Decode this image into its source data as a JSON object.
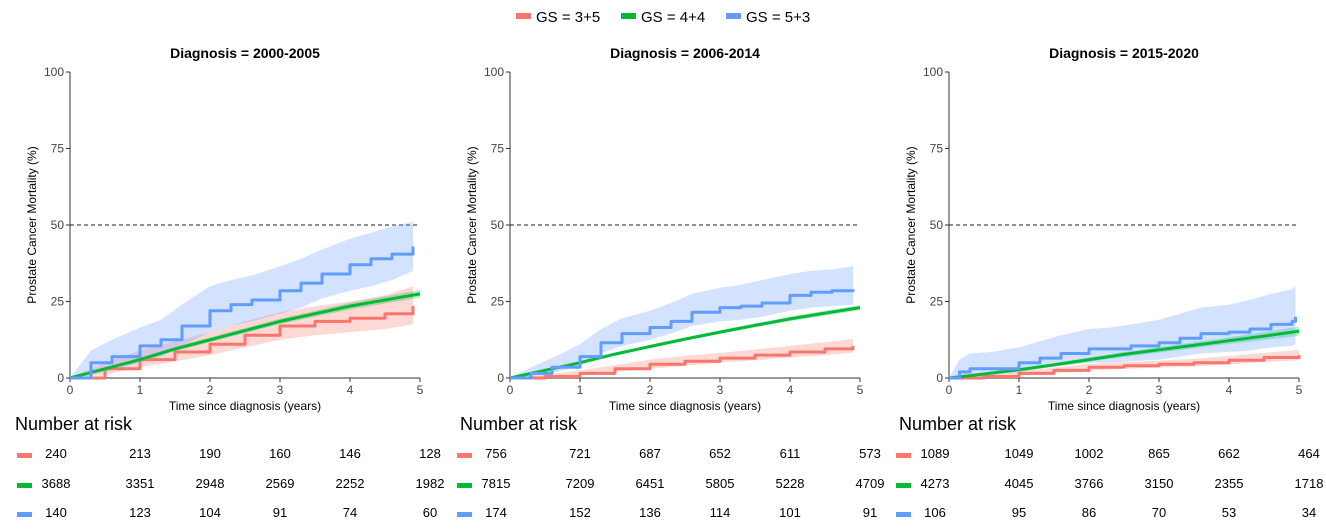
{
  "legend": {
    "items": [
      {
        "label": "GS = 3+5",
        "color": "#f8766d"
      },
      {
        "label": "GS = 4+4",
        "color": "#00ba38"
      },
      {
        "label": "GS = 5+3",
        "color": "#619cff"
      }
    ]
  },
  "risk_table_title": "Number at risk",
  "chart_data": [
    {
      "type": "line",
      "title": "Diagnosis = 2000-2005",
      "xlabel": "Time since diagnosis (years)",
      "ylabel": "Prostate Cancer Mortality (%)",
      "xlim": [
        0,
        5
      ],
      "ylim": [
        0,
        100
      ],
      "x_ticks": [
        "0",
        "1",
        "2",
        "3",
        "4",
        "5"
      ],
      "y_ticks": [
        "0",
        "25",
        "50",
        "75",
        "100"
      ],
      "reference_line_y": 50,
      "grid": false,
      "legend_position": "top",
      "series": [
        {
          "name": "GS = 3+5",
          "color": "#f8766d",
          "x": [
            0,
            0.5,
            1,
            1.5,
            2,
            2.5,
            3,
            3.5,
            4,
            4.5,
            4.9
          ],
          "y": [
            0,
            3,
            6,
            8.5,
            11,
            14,
            17,
            18.5,
            19.5,
            21,
            23.5
          ],
          "lower": [
            0,
            1,
            3.5,
            5.5,
            7.5,
            10,
            12.5,
            14,
            15,
            16,
            17.5
          ],
          "upper": [
            0,
            5,
            9,
            12,
            15,
            18.5,
            21.5,
            23.5,
            25,
            27,
            30
          ]
        },
        {
          "name": "GS = 4+4",
          "color": "#00ba38",
          "x": [
            0,
            0.5,
            1,
            1.5,
            2,
            2.5,
            3,
            3.5,
            4,
            4.5,
            5
          ],
          "y": [
            0,
            3,
            6,
            9.5,
            12.5,
            15.5,
            18.5,
            21,
            23.5,
            25.5,
            27.5
          ],
          "lower": [
            0,
            2.5,
            5.5,
            8.8,
            11.7,
            14.7,
            17.6,
            20,
            22.4,
            24.3,
            26.2
          ],
          "upper": [
            0,
            3.5,
            6.5,
            10.2,
            13.3,
            16.3,
            19.4,
            22,
            24.6,
            26.7,
            28.8
          ]
        },
        {
          "name": "GS = 5+3",
          "color": "#619cff",
          "x": [
            0,
            0.3,
            0.6,
            1,
            1.3,
            1.6,
            2,
            2.3,
            2.6,
            3,
            3.3,
            3.6,
            4,
            4.3,
            4.6,
            4.9
          ],
          "y": [
            0,
            5,
            7,
            10.5,
            12.5,
            17,
            22,
            24,
            25.5,
            28.5,
            31,
            34,
            37,
            39,
            40.5,
            43
          ],
          "lower": [
            0,
            1,
            2.5,
            5,
            7,
            10.5,
            15,
            17,
            18.5,
            21,
            23,
            26,
            28.5,
            30,
            32,
            35
          ],
          "upper": [
            0,
            9,
            12.5,
            16.5,
            19,
            24,
            30,
            32,
            33.5,
            36.5,
            39,
            42,
            45.5,
            47.5,
            49.5,
            51
          ]
        }
      ],
      "risk_table": [
        {
          "name": "GS = 3+5",
          "values": [
            "240",
            "213",
            "190",
            "160",
            "146",
            "128"
          ]
        },
        {
          "name": "GS = 4+4",
          "values": [
            "3688",
            "3351",
            "2948",
            "2569",
            "2252",
            "1982"
          ]
        },
        {
          "name": "GS = 5+3",
          "values": [
            "140",
            "123",
            "104",
            "91",
            "74",
            "60"
          ]
        }
      ]
    },
    {
      "type": "line",
      "title": "Diagnosis = 2006-2014",
      "xlabel": "Time since diagnosis (years)",
      "ylabel": "Prostate Cancer Mortality (%)",
      "xlim": [
        0,
        5
      ],
      "ylim": [
        0,
        100
      ],
      "x_ticks": [
        "0",
        "1",
        "2",
        "3",
        "4",
        "5"
      ],
      "y_ticks": [
        "0",
        "25",
        "50",
        "75",
        "100"
      ],
      "reference_line_y": 50,
      "grid": false,
      "legend_position": "top",
      "series": [
        {
          "name": "GS = 3+5",
          "color": "#f8766d",
          "x": [
            0,
            0.5,
            1,
            1.5,
            2,
            2.5,
            3,
            3.5,
            4,
            4.5,
            4.9
          ],
          "y": [
            0,
            0.5,
            1.5,
            3,
            4.5,
            5.5,
            6.5,
            7.5,
            8.5,
            9.5,
            10.5
          ],
          "lower": [
            0,
            0.2,
            0.8,
            2,
            3,
            4,
            5,
            5.8,
            6.7,
            7.5,
            8.3
          ],
          "upper": [
            0,
            1,
            2.5,
            4.2,
            6,
            7.2,
            8.2,
            9.3,
            10.5,
            11.7,
            12.7
          ]
        },
        {
          "name": "GS = 4+4",
          "color": "#00ba38",
          "x": [
            0,
            0.5,
            1,
            1.5,
            2,
            2.5,
            3,
            3.5,
            4,
            4.5,
            5
          ],
          "y": [
            0,
            2.5,
            5,
            7.8,
            10.3,
            12.7,
            15,
            17.2,
            19.3,
            21.2,
            23
          ],
          "lower": [
            0,
            2.2,
            4.6,
            7.3,
            9.8,
            12.2,
            14.4,
            16.6,
            18.6,
            20.4,
            22.2
          ],
          "upper": [
            0,
            2.8,
            5.4,
            8.3,
            10.8,
            13.2,
            15.6,
            17.8,
            20,
            22,
            23.8
          ]
        },
        {
          "name": "GS = 5+3",
          "color": "#619cff",
          "x": [
            0,
            0.3,
            0.6,
            1,
            1.3,
            1.6,
            2,
            2.3,
            2.6,
            3,
            3.3,
            3.6,
            4,
            4.3,
            4.6,
            4.9
          ],
          "y": [
            0,
            1.5,
            3.5,
            7,
            11.5,
            14.5,
            16.5,
            18.5,
            21.5,
            23,
            23.5,
            24.5,
            27,
            28,
            28.5,
            29
          ],
          "lower": [
            0,
            0.5,
            1.5,
            4,
            8,
            10.5,
            12.5,
            14.5,
            17,
            18.5,
            19,
            20,
            22,
            23,
            23.5,
            24
          ],
          "upper": [
            0,
            3.5,
            6.5,
            11,
            16,
            19.5,
            22,
            24.5,
            27.5,
            29.5,
            30.5,
            32,
            34,
            35,
            35.5,
            36.5
          ]
        }
      ],
      "risk_table": [
        {
          "name": "GS = 3+5",
          "values": [
            "756",
            "721",
            "687",
            "652",
            "611",
            "573"
          ]
        },
        {
          "name": "GS = 4+4",
          "values": [
            "7815",
            "7209",
            "6451",
            "5805",
            "5228",
            "4709"
          ]
        },
        {
          "name": "GS = 5+3",
          "values": [
            "174",
            "152",
            "136",
            "114",
            "101",
            "91"
          ]
        }
      ]
    },
    {
      "type": "line",
      "title": "Diagnosis = 2015-2020",
      "xlabel": "Time since diagnosis (years)",
      "ylabel": "Prostate Cancer Mortality (%)",
      "xlim": [
        0,
        5
      ],
      "ylim": [
        0,
        100
      ],
      "x_ticks": [
        "0",
        "1",
        "2",
        "3",
        "4",
        "5"
      ],
      "y_ticks": [
        "0",
        "25",
        "50",
        "75",
        "100"
      ],
      "reference_line_y": 50,
      "grid": false,
      "legend_position": "top",
      "series": [
        {
          "name": "GS = 3+5",
          "color": "#f8766d",
          "x": [
            0,
            0.5,
            1,
            1.5,
            2,
            2.5,
            3,
            3.5,
            4,
            4.5,
            5
          ],
          "y": [
            0,
            0.5,
            1.5,
            2.5,
            3.5,
            4,
            4.5,
            5,
            5.8,
            6.7,
            7.5
          ],
          "lower": [
            0,
            0.2,
            0.8,
            1.6,
            2.4,
            3,
            3.4,
            3.8,
            4.4,
            5.2,
            5.8
          ],
          "upper": [
            0,
            1,
            2.2,
            3.4,
            4.6,
            5.2,
            5.7,
            6.3,
            7.2,
            8.2,
            9.2
          ]
        },
        {
          "name": "GS = 4+4",
          "color": "#00ba38",
          "x": [
            0,
            0.5,
            1,
            1.5,
            2,
            2.5,
            3,
            3.5,
            4,
            4.5,
            5
          ],
          "y": [
            0,
            1.3,
            2.7,
            4.3,
            6,
            7.7,
            9.2,
            10.7,
            12.2,
            13.7,
            15.3
          ],
          "lower": [
            0,
            1,
            2.2,
            3.7,
            5.3,
            6.9,
            8.3,
            9.7,
            11.1,
            12.4,
            13.8
          ],
          "upper": [
            0,
            1.6,
            3.2,
            4.9,
            6.7,
            8.5,
            10.1,
            11.7,
            13.3,
            15,
            16.8
          ]
        },
        {
          "name": "GS = 5+3",
          "color": "#619cff",
          "x": [
            0,
            0.15,
            0.3,
            0.6,
            1,
            1.3,
            1.6,
            2,
            2.3,
            2.6,
            3,
            3.3,
            3.6,
            4,
            4.3,
            4.6,
            4.9,
            4.95
          ],
          "y": [
            0,
            2,
            3,
            3,
            5,
            6.5,
            8,
            9.5,
            9.5,
            10.5,
            11.5,
            13,
            14.5,
            15,
            16,
            17.5,
            18.5,
            20
          ],
          "lower": [
            0,
            0.5,
            1,
            1,
            2,
            3,
            4,
            5,
            5,
            5.5,
            6,
            7,
            8,
            8.5,
            9,
            10,
            10.5,
            11
          ],
          "upper": [
            0,
            6,
            8,
            8.5,
            10,
            12,
            14,
            16,
            16.5,
            17.5,
            19,
            21,
            23,
            24,
            25.5,
            27.5,
            29,
            30
          ]
        }
      ],
      "risk_table": [
        {
          "name": "GS = 3+5",
          "values": [
            "1089",
            "1049",
            "1002",
            "865",
            "662",
            "464"
          ]
        },
        {
          "name": "GS = 4+4",
          "values": [
            "4273",
            "4045",
            "3766",
            "3150",
            "2355",
            "1718"
          ]
        },
        {
          "name": "GS = 5+3",
          "values": [
            "106",
            "95",
            "86",
            "70",
            "53",
            "34"
          ]
        }
      ]
    }
  ]
}
